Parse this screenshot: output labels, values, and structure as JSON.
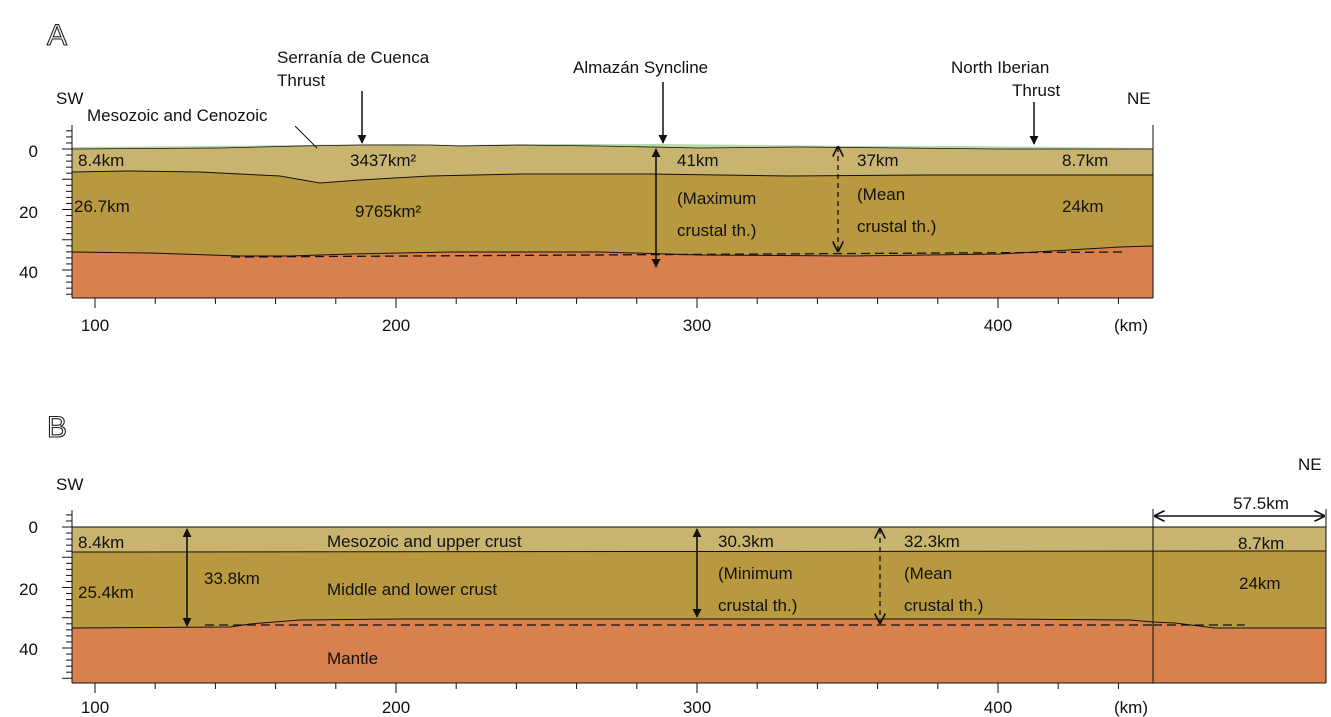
{
  "colors": {
    "cover": "#b9d8ac",
    "upper_crust": "#c8b46e",
    "lower_crust": "#b99940",
    "mantle": "#d8804e",
    "line": "#111111"
  },
  "panel_a": {
    "letter": "A",
    "sw": "SW",
    "ne": "NE",
    "x_ticks": [
      "100",
      "200",
      "300",
      "400"
    ],
    "x_unit": "(km)",
    "y_ticks": [
      "0",
      "20",
      "40"
    ],
    "structures": {
      "serrania_1": "Serranía de Cuenca",
      "serrania_2": "Thrust",
      "almazan": "Almazán Syncline",
      "north_iberian_1": "North Iberian",
      "north_iberian_2": "Thrust"
    },
    "cover_label": "Mesozoic and Cenozoic",
    "labels": {
      "sw_upper": "8.4km",
      "sw_lower": "26.7km",
      "area_upper": "3437km²",
      "area_lower": "9765km²",
      "max_th": "41km",
      "max_note_1": "(Maximum",
      "max_note_2": "crustal th.)",
      "mean_th": "37km",
      "mean_note_1": "(Mean",
      "mean_note_2": "crustal th.)",
      "ne_upper": "8.7km",
      "ne_lower": "24km"
    }
  },
  "panel_b": {
    "letter": "B",
    "sw": "SW",
    "ne": "NE",
    "x_ticks": [
      "100",
      "200",
      "300",
      "400"
    ],
    "x_unit": "(km)",
    "y_ticks": [
      "0",
      "20",
      "40"
    ],
    "extension": "57.5km",
    "labels": {
      "sw_upper": "8.4km",
      "sw_lower": "25.4km",
      "sw_total": "33.8km",
      "upper_layer": "Mesozoic and upper crust",
      "lower_layer": "Middle and lower crust",
      "mantle": "Mantle",
      "min_th": "30.3km",
      "min_note_1": "(Minimum",
      "min_note_2": "crustal th.)",
      "mean_th": "32.3km",
      "mean_note_1": "(Mean",
      "mean_note_2": "crustal th.)",
      "ne_upper": "8.7km",
      "ne_lower": "24km"
    }
  }
}
